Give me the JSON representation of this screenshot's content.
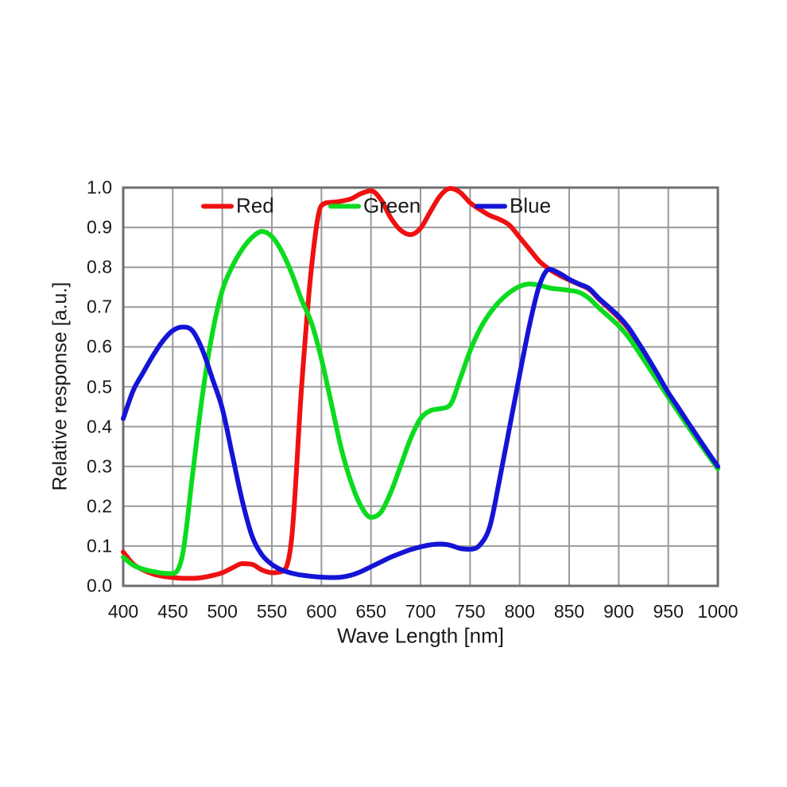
{
  "chart_data": {
    "type": "line",
    "title": "",
    "xlabel": "Wave Length [nm]",
    "ylabel": "Relative response [a.u.]",
    "xlim": [
      400,
      1000
    ],
    "ylim": [
      0,
      1
    ],
    "grid": true,
    "legend_position": "top-inside",
    "x_ticks": [
      400,
      450,
      500,
      550,
      600,
      650,
      700,
      750,
      800,
      850,
      900,
      950,
      1000
    ],
    "y_ticks": [
      0,
      0.1,
      0.2,
      0.3,
      0.4,
      0.5,
      0.6,
      0.7,
      0.8,
      0.9,
      1.0
    ],
    "x_tick_labels": [
      "400",
      "450",
      "500",
      "550",
      "600",
      "650",
      "700",
      "750",
      "800",
      "850",
      "900",
      "950",
      "1000"
    ],
    "y_tick_labels": [
      "1.0",
      "0.9",
      "0.8",
      "0.7",
      "0.6",
      "0.5",
      "0.4",
      "0.3",
      "0.2",
      "0.1",
      "0.0"
    ],
    "colors": {
      "grid": "#9a9a9a",
      "border": "#6e6e6e",
      "text": "#1a1a1a"
    },
    "x": [
      400,
      410,
      420,
      430,
      440,
      450,
      460,
      470,
      480,
      490,
      500,
      510,
      520,
      530,
      540,
      550,
      560,
      570,
      580,
      590,
      600,
      610,
      620,
      630,
      640,
      650,
      660,
      670,
      680,
      690,
      700,
      710,
      720,
      730,
      740,
      750,
      760,
      770,
      780,
      790,
      800,
      810,
      820,
      830,
      840,
      850,
      860,
      870,
      880,
      890,
      900,
      910,
      920,
      930,
      940,
      950,
      960,
      970,
      980,
      990,
      1000
    ],
    "series": [
      {
        "name": "Red",
        "color": "#ee1111",
        "values": [
          0.085,
          0.055,
          0.04,
          0.03,
          0.024,
          0.021,
          0.019,
          0.019,
          0.021,
          0.026,
          0.033,
          0.045,
          0.056,
          0.054,
          0.04,
          0.033,
          0.036,
          0.12,
          0.5,
          0.8,
          0.955,
          0.963,
          0.966,
          0.972,
          0.985,
          0.992,
          0.97,
          0.924,
          0.893,
          0.882,
          0.898,
          0.94,
          0.98,
          0.998,
          0.988,
          0.962,
          0.945,
          0.93,
          0.92,
          0.905,
          0.875,
          0.845,
          0.815,
          0.795,
          0.78,
          0.768,
          0.757,
          0.745,
          0.72,
          0.697,
          0.673,
          0.645,
          0.606,
          0.565,
          0.524,
          0.482,
          0.445,
          0.407,
          0.37,
          0.333,
          0.296
        ]
      },
      {
        "name": "Green",
        "color": "#0bdb1f",
        "values": [
          0.072,
          0.052,
          0.042,
          0.036,
          0.032,
          0.031,
          0.08,
          0.28,
          0.48,
          0.635,
          0.742,
          0.802,
          0.845,
          0.875,
          0.89,
          0.877,
          0.84,
          0.785,
          0.718,
          0.66,
          0.57,
          0.458,
          0.345,
          0.26,
          0.2,
          0.172,
          0.185,
          0.235,
          0.302,
          0.37,
          0.42,
          0.44,
          0.445,
          0.455,
          0.52,
          0.59,
          0.645,
          0.685,
          0.715,
          0.737,
          0.752,
          0.758,
          0.755,
          0.748,
          0.745,
          0.742,
          0.737,
          0.722,
          0.698,
          0.676,
          0.653,
          0.624,
          0.588,
          0.55,
          0.512,
          0.474,
          0.437,
          0.4,
          0.364,
          0.329,
          0.294
        ]
      },
      {
        "name": "Blue",
        "color": "#1414d6",
        "values": [
          0.42,
          0.49,
          0.535,
          0.578,
          0.615,
          0.641,
          0.65,
          0.64,
          0.592,
          0.52,
          0.445,
          0.33,
          0.215,
          0.125,
          0.078,
          0.054,
          0.04,
          0.032,
          0.027,
          0.024,
          0.022,
          0.021,
          0.022,
          0.027,
          0.036,
          0.048,
          0.06,
          0.072,
          0.082,
          0.091,
          0.098,
          0.103,
          0.105,
          0.102,
          0.094,
          0.092,
          0.103,
          0.15,
          0.27,
          0.4,
          0.53,
          0.655,
          0.755,
          0.795,
          0.785,
          0.77,
          0.758,
          0.747,
          0.722,
          0.7,
          0.677,
          0.648,
          0.61,
          0.57,
          0.528,
          0.485,
          0.448,
          0.41,
          0.373,
          0.336,
          0.3
        ]
      }
    ]
  }
}
